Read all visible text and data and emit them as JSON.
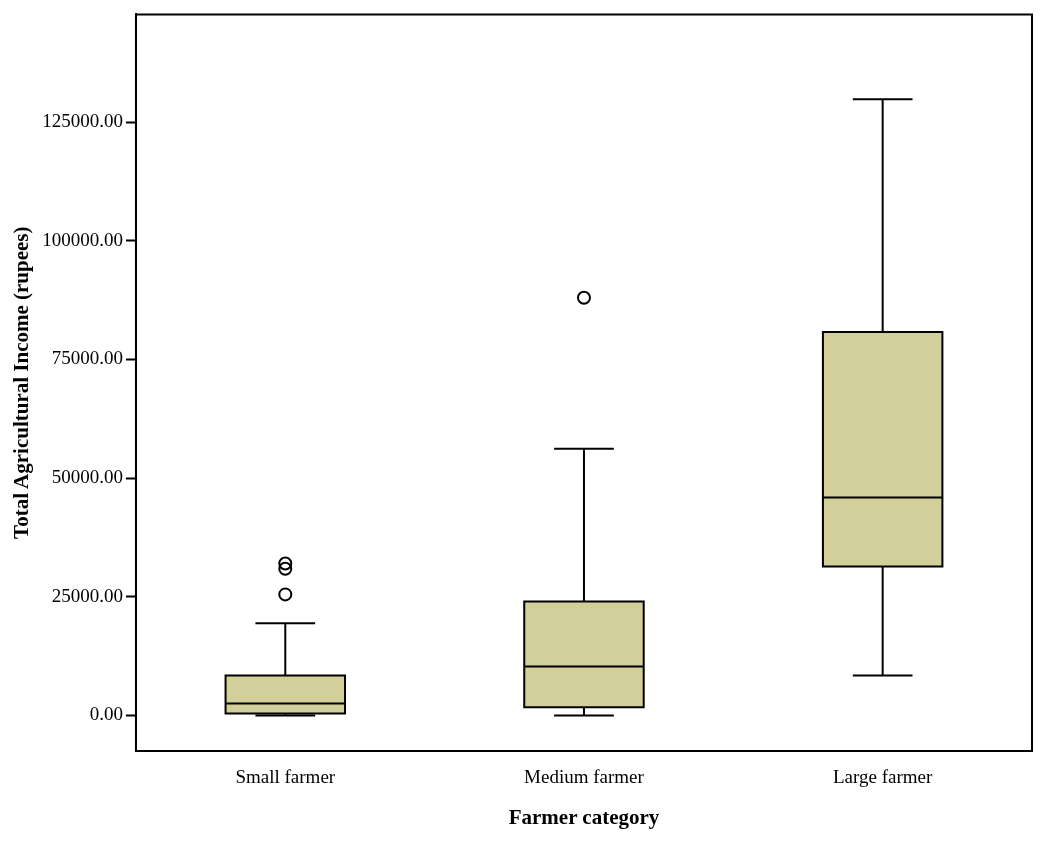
{
  "chart_data": {
    "type": "box",
    "xlabel": "Farmer category",
    "ylabel": "Total Agricultural Income (rupees)",
    "categories": [
      "Small farmer",
      "Medium farmer",
      "Large farmer"
    ],
    "color": "#d3cf9a",
    "grid": false,
    "legend": false,
    "ylim": [
      -7500,
      147700
    ],
    "yticks": [
      {
        "value": 0,
        "label": "0.00"
      },
      {
        "value": 25000,
        "label": "25000.00"
      },
      {
        "value": 50000,
        "label": "50000.00"
      },
      {
        "value": 75000,
        "label": "75000.00"
      },
      {
        "value": 100000,
        "label": "100000.00"
      },
      {
        "value": 125000,
        "label": "125000.00"
      }
    ],
    "boxes": [
      {
        "low": 0,
        "q1": 400,
        "median": 2500,
        "q3": 8400,
        "high": 19400,
        "outliers": [
          25500,
          30900,
          32000
        ]
      },
      {
        "low": 0,
        "q1": 1700,
        "median": 10300,
        "q3": 24000,
        "high": 56200,
        "outliers": [
          88000
        ]
      },
      {
        "low": 8400,
        "q1": 31400,
        "median": 45900,
        "q3": 80800,
        "high": 129800
      }
    ]
  }
}
